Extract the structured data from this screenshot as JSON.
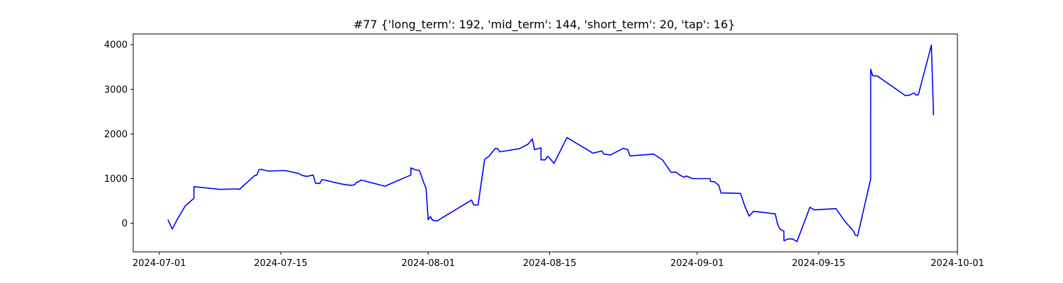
{
  "chart_data": {
    "type": "line",
    "title": "#77 {'long_term': 192, 'mid_term': 144, 'short_term': 20, 'tap': 16}",
    "xlabel": "",
    "ylabel": "",
    "x_type": "date",
    "xlim": [
      "2024-06-28",
      "2024-10-01"
    ],
    "ylim": [
      -640,
      4240
    ],
    "x_ticks": [
      "2024-07-01",
      "2024-07-15",
      "2024-08-01",
      "2024-08-15",
      "2024-09-01",
      "2024-09-15",
      "2024-10-01"
    ],
    "y_ticks": [
      0,
      1000,
      2000,
      3000,
      4000
    ],
    "grid": false,
    "legend": "none",
    "series": [
      {
        "color": "#0000ff",
        "points": [
          [
            "2024-07-02",
            80
          ],
          [
            "2024-07-02T12:00",
            -130
          ],
          [
            "2024-07-03",
            60
          ],
          [
            "2024-07-04",
            390
          ],
          [
            "2024-07-05",
            560
          ],
          [
            "2024-07-05T00:05",
            820
          ],
          [
            "2024-07-08",
            760
          ],
          [
            "2024-07-10",
            770
          ],
          [
            "2024-07-10T06:00",
            760
          ],
          [
            "2024-07-12",
            1070
          ],
          [
            "2024-07-12T06:00",
            1080
          ],
          [
            "2024-07-12T12:00",
            1200
          ],
          [
            "2024-07-12T18:00",
            1210
          ],
          [
            "2024-07-13T12:00",
            1170
          ],
          [
            "2024-07-15T12:00",
            1180
          ],
          [
            "2024-07-17",
            1120
          ],
          [
            "2024-07-17T12:00",
            1070
          ],
          [
            "2024-07-18",
            1050
          ],
          [
            "2024-07-18T18:00",
            1080
          ],
          [
            "2024-07-19",
            900
          ],
          [
            "2024-07-19T12:00",
            890
          ],
          [
            "2024-07-19T18:00",
            980
          ],
          [
            "2024-07-22",
            880
          ],
          [
            "2024-07-23",
            850
          ],
          [
            "2024-07-23T12:00",
            860
          ],
          [
            "2024-07-23T18:00",
            920
          ],
          [
            "2024-07-24",
            930
          ],
          [
            "2024-07-24T06:00",
            970
          ],
          [
            "2024-07-27",
            830
          ],
          [
            "2024-07-30",
            1080
          ],
          [
            "2024-07-30T00:05",
            1240
          ],
          [
            "2024-07-30T12:00",
            1200
          ],
          [
            "2024-07-31",
            1180
          ],
          [
            "2024-07-31T12:00",
            900
          ],
          [
            "2024-07-31T18:00",
            790
          ],
          [
            "2024-08-01",
            80
          ],
          [
            "2024-08-01T06:00",
            150
          ],
          [
            "2024-08-01T12:00",
            70
          ],
          [
            "2024-08-02",
            50
          ],
          [
            "2024-08-06",
            520
          ],
          [
            "2024-08-06T06:00",
            410
          ],
          [
            "2024-08-06T18:00",
            410
          ],
          [
            "2024-08-07T12:00",
            1430
          ],
          [
            "2024-08-08",
            1500
          ],
          [
            "2024-08-08T12:00",
            1620
          ],
          [
            "2024-08-08T18:00",
            1680
          ],
          [
            "2024-08-09",
            1670
          ],
          [
            "2024-08-09T06:00",
            1600
          ],
          [
            "2024-08-11T12:00",
            1670
          ],
          [
            "2024-08-12",
            1720
          ],
          [
            "2024-08-12T12:00",
            1770
          ],
          [
            "2024-08-13",
            1890
          ],
          [
            "2024-08-13T06:00",
            1650
          ],
          [
            "2024-08-14",
            1690
          ],
          [
            "2024-08-14T00:05",
            1420
          ],
          [
            "2024-08-14T12:00",
            1420
          ],
          [
            "2024-08-14T18:00",
            1500
          ],
          [
            "2024-08-15",
            1460
          ],
          [
            "2024-08-15T12:00",
            1340
          ],
          [
            "2024-08-17",
            1920
          ],
          [
            "2024-08-20",
            1570
          ],
          [
            "2024-08-21",
            1620
          ],
          [
            "2024-08-21T06:00",
            1550
          ],
          [
            "2024-08-22",
            1530
          ],
          [
            "2024-08-23T12:00",
            1680
          ],
          [
            "2024-08-24",
            1650
          ],
          [
            "2024-08-24T06:00",
            1510
          ],
          [
            "2024-08-27",
            1550
          ],
          [
            "2024-08-28",
            1420
          ],
          [
            "2024-08-29",
            1140
          ],
          [
            "2024-08-29T12:00",
            1150
          ],
          [
            "2024-08-30",
            1080
          ],
          [
            "2024-08-30T12:00",
            1030
          ],
          [
            "2024-08-30T18:00",
            1060
          ],
          [
            "2024-08-31T12:00",
            1000
          ],
          [
            "2024-09-02T12:00",
            1000
          ],
          [
            "2024-09-02T13:00",
            940
          ],
          [
            "2024-09-03",
            930
          ],
          [
            "2024-09-03T12:00",
            850
          ],
          [
            "2024-09-03T18:00",
            680
          ],
          [
            "2024-09-06",
            670
          ],
          [
            "2024-09-06T12:00",
            380
          ],
          [
            "2024-09-07",
            160
          ],
          [
            "2024-09-07T12:00",
            270
          ],
          [
            "2024-09-10",
            210
          ],
          [
            "2024-09-10T06:00",
            0
          ],
          [
            "2024-09-10T12:00",
            -120
          ],
          [
            "2024-09-11",
            -180
          ],
          [
            "2024-09-11T00:05",
            -390
          ],
          [
            "2024-09-11T12:00",
            -350
          ],
          [
            "2024-09-12",
            -350
          ],
          [
            "2024-09-12T12:00",
            -410
          ],
          [
            "2024-09-13T12:00",
            100
          ],
          [
            "2024-09-14",
            360
          ],
          [
            "2024-09-14T12:00",
            300
          ],
          [
            "2024-09-17",
            330
          ],
          [
            "2024-09-18",
            50
          ],
          [
            "2024-09-18T12:00",
            -60
          ],
          [
            "2024-09-19",
            -170
          ],
          [
            "2024-09-19T06:00",
            -270
          ],
          [
            "2024-09-19T12:00",
            -280
          ],
          [
            "2024-09-21",
            990
          ],
          [
            "2024-09-21T00:05",
            3450
          ],
          [
            "2024-09-21T06:00",
            3300
          ],
          [
            "2024-09-21T18:00",
            3300
          ],
          [
            "2024-09-25",
            2860
          ],
          [
            "2024-09-25T12:00",
            2870
          ],
          [
            "2024-09-26",
            2920
          ],
          [
            "2024-09-26T06:00",
            2870
          ],
          [
            "2024-09-26T12:00",
            2880
          ],
          [
            "2024-09-28",
            3990
          ],
          [
            "2024-09-28T06:00",
            2420
          ]
        ]
      }
    ]
  }
}
